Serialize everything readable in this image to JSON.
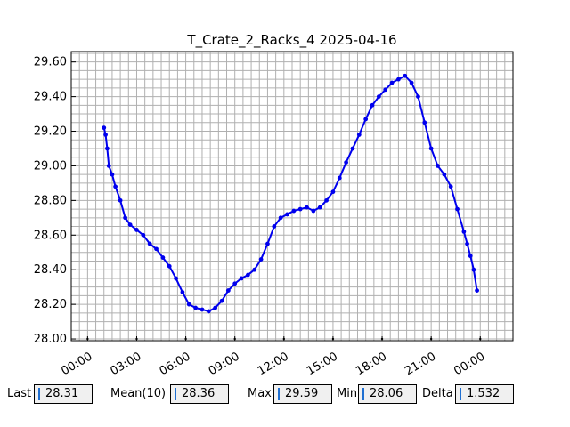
{
  "chart_data": {
    "type": "line",
    "title": "T_Crate_2_Racks_4 2025-04-16",
    "xlabel": "",
    "ylabel": "",
    "x_range_hours": [
      -1.0,
      26.0
    ],
    "ylim": [
      27.99,
      29.66
    ],
    "x_ticks": [
      {
        "hour": 0,
        "label": "00:00"
      },
      {
        "hour": 3,
        "label": "03:00"
      },
      {
        "hour": 6,
        "label": "06:00"
      },
      {
        "hour": 9,
        "label": "09:00"
      },
      {
        "hour": 12,
        "label": "12:00"
      },
      {
        "hour": 15,
        "label": "15:00"
      },
      {
        "hour": 18,
        "label": "18:00"
      },
      {
        "hour": 21,
        "label": "21:00"
      },
      {
        "hour": 24,
        "label": "00:00"
      }
    ],
    "y_ticks": [
      {
        "value": 28.0,
        "label": "28.00"
      },
      {
        "value": 28.2,
        "label": "28.20"
      },
      {
        "value": 28.4,
        "label": "28.40"
      },
      {
        "value": 28.6,
        "label": "28.60"
      },
      {
        "value": 28.8,
        "label": "28.80"
      },
      {
        "value": 29.0,
        "label": "29.00"
      },
      {
        "value": 29.2,
        "label": "29.20"
      },
      {
        "value": 29.4,
        "label": "29.40"
      },
      {
        "value": 29.6,
        "label": "29.60"
      }
    ],
    "grid": true,
    "line_color": "#0000ee",
    "series": [
      {
        "x_hours": [
          1.0,
          1.1,
          1.2,
          1.3,
          1.5,
          1.7,
          2.0,
          2.3,
          2.6,
          3.0,
          3.4,
          3.8,
          4.2,
          4.6,
          5.0,
          5.4,
          5.8,
          6.2,
          6.6,
          7.0,
          7.4,
          7.8,
          8.2,
          8.6,
          9.0,
          9.4,
          9.8,
          10.2,
          10.6,
          11.0,
          11.4,
          11.8,
          12.2,
          12.6,
          13.0,
          13.4,
          13.8,
          14.2,
          14.6,
          15.0,
          15.4,
          15.8,
          16.2,
          16.6,
          17.0,
          17.4,
          17.8,
          18.2,
          18.6,
          19.0,
          19.4,
          19.8,
          20.2,
          20.6,
          21.0,
          21.4,
          21.8,
          22.2,
          22.6,
          23.0,
          23.2,
          23.4,
          23.6,
          23.8
        ],
        "values": [
          29.22,
          29.18,
          29.1,
          29.0,
          28.95,
          28.88,
          28.8,
          28.7,
          28.66,
          28.63,
          28.6,
          28.55,
          28.52,
          28.47,
          28.42,
          28.35,
          28.27,
          28.2,
          28.18,
          28.17,
          28.16,
          28.18,
          28.22,
          28.28,
          28.32,
          28.35,
          28.37,
          28.4,
          28.46,
          28.55,
          28.65,
          28.7,
          28.72,
          28.74,
          28.75,
          28.76,
          28.74,
          28.76,
          28.8,
          28.85,
          28.93,
          29.02,
          29.1,
          29.18,
          29.27,
          29.35,
          29.4,
          29.44,
          29.48,
          29.5,
          29.52,
          29.48,
          29.4,
          29.25,
          29.1,
          29.0,
          28.95,
          28.88,
          28.75,
          28.62,
          28.55,
          28.48,
          28.4,
          28.28
        ]
      }
    ]
  },
  "stats": {
    "last_label": "Last",
    "last_value": "28.31",
    "mean_label": "Mean(10)",
    "mean_value": "28.36",
    "max_label": "Max",
    "max_value": "29.59",
    "min_label": "Min",
    "min_value": "28.06",
    "delta_label": "Delta",
    "delta_value": "1.532"
  }
}
